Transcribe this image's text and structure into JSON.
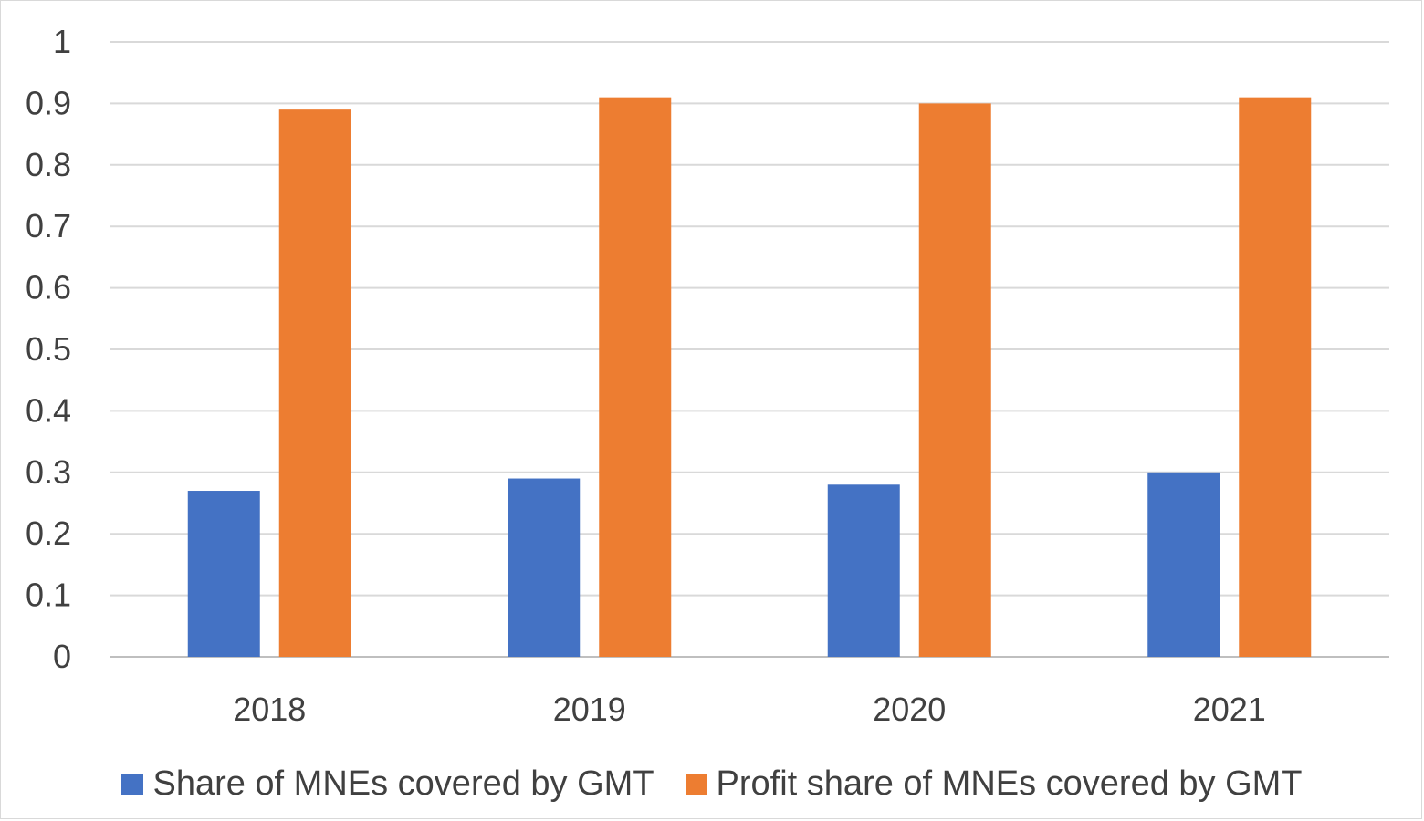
{
  "chart_data": {
    "type": "bar",
    "categories": [
      "2018",
      "2019",
      "2020",
      "2021"
    ],
    "series": [
      {
        "name": "Share of MNEs covered by GMT",
        "color": "#4472c4",
        "values": [
          0.27,
          0.29,
          0.28,
          0.3
        ]
      },
      {
        "name": "Profit share of MNEs covered by GMT",
        "color": "#ed7d31",
        "values": [
          0.89,
          0.91,
          0.9,
          0.91
        ]
      }
    ],
    "y_ticks": [
      "0",
      "0.1",
      "0.2",
      "0.3",
      "0.4",
      "0.5",
      "0.6",
      "0.7",
      "0.8",
      "0.9",
      "1"
    ],
    "ylim": [
      0,
      1
    ],
    "title": "",
    "xlabel": "",
    "ylabel": "",
    "grid": true,
    "legend_position": "bottom"
  }
}
